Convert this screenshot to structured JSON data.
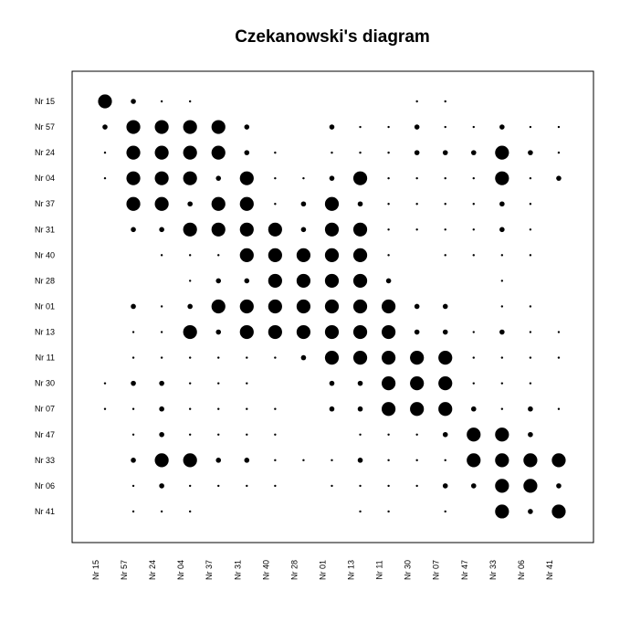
{
  "chart_data": {
    "type": "heatmap",
    "title": "Czekanowski's diagram",
    "xlabel": "",
    "ylabel": "",
    "legend": "none",
    "grid": false,
    "row_labels": [
      "Nr 15",
      "Nr 57",
      "Nr 24",
      "Nr 04",
      "Nr 37",
      "Nr 31",
      "Nr 40",
      "Nr 28",
      "Nr 01",
      "Nr 13",
      "Nr 11",
      "Nr 30",
      "Nr 07",
      "Nr 47",
      "Nr 33",
      "Nr 06",
      "Nr 41"
    ],
    "col_labels": [
      "Nr 15",
      "Nr 57",
      "Nr 24",
      "Nr 04",
      "Nr 37",
      "Nr 31",
      "Nr 40",
      "Nr 28",
      "Nr 01",
      "Nr 13",
      "Nr 11",
      "Nr 30",
      "Nr 07",
      "Nr 47",
      "Nr 33",
      "Nr 06",
      "Nr 41"
    ],
    "size_levels": [
      0,
      1,
      2,
      3,
      4,
      5
    ],
    "matrix": [
      [
        5,
        2,
        1,
        1,
        0,
        0,
        0,
        0,
        0,
        0,
        0,
        1,
        1,
        0,
        0,
        0,
        0
      ],
      [
        2,
        5,
        5,
        5,
        5,
        2,
        0,
        0,
        2,
        1,
        1,
        2,
        1,
        1,
        2,
        1,
        1
      ],
      [
        1,
        5,
        5,
        5,
        5,
        2,
        1,
        0,
        1,
        1,
        1,
        2,
        2,
        2,
        5,
        2,
        1
      ],
      [
        1,
        5,
        5,
        5,
        2,
        5,
        1,
        1,
        2,
        5,
        1,
        1,
        1,
        1,
        5,
        1,
        2
      ],
      [
        0,
        5,
        5,
        2,
        5,
        5,
        1,
        2,
        5,
        2,
        1,
        1,
        1,
        1,
        2,
        1,
        0
      ],
      [
        0,
        2,
        2,
        5,
        5,
        5,
        5,
        2,
        5,
        5,
        1,
        1,
        1,
        1,
        2,
        1,
        0
      ],
      [
        0,
        0,
        1,
        1,
        1,
        5,
        5,
        5,
        5,
        5,
        1,
        0,
        1,
        1,
        1,
        1,
        0
      ],
      [
        0,
        0,
        0,
        1,
        2,
        2,
        5,
        5,
        5,
        5,
        2,
        0,
        0,
        0,
        1,
        0,
        0
      ],
      [
        0,
        2,
        1,
        2,
        5,
        5,
        5,
        5,
        5,
        5,
        5,
        2,
        2,
        0,
        1,
        1,
        0
      ],
      [
        0,
        1,
        1,
        5,
        2,
        5,
        5,
        5,
        5,
        5,
        5,
        2,
        2,
        1,
        2,
        1,
        1
      ],
      [
        0,
        1,
        1,
        1,
        1,
        1,
        1,
        2,
        5,
        5,
        5,
        5,
        5,
        1,
        1,
        1,
        1
      ],
      [
        1,
        2,
        2,
        1,
        1,
        1,
        0,
        0,
        2,
        2,
        5,
        5,
        5,
        1,
        1,
        1,
        0
      ],
      [
        1,
        1,
        2,
        1,
        1,
        1,
        1,
        0,
        2,
        2,
        5,
        5,
        5,
        2,
        1,
        2,
        1
      ],
      [
        0,
        1,
        2,
        1,
        1,
        1,
        1,
        0,
        0,
        1,
        1,
        1,
        2,
        5,
        5,
        2,
        0
      ],
      [
        0,
        2,
        5,
        5,
        2,
        2,
        1,
        1,
        1,
        2,
        1,
        1,
        1,
        5,
        5,
        5,
        5
      ],
      [
        0,
        1,
        2,
        1,
        1,
        1,
        1,
        0,
        1,
        1,
        1,
        1,
        2,
        2,
        5,
        5,
        2
      ],
      [
        0,
        1,
        1,
        1,
        0,
        0,
        0,
        0,
        0,
        1,
        1,
        0,
        1,
        0,
        5,
        2,
        5
      ]
    ]
  }
}
